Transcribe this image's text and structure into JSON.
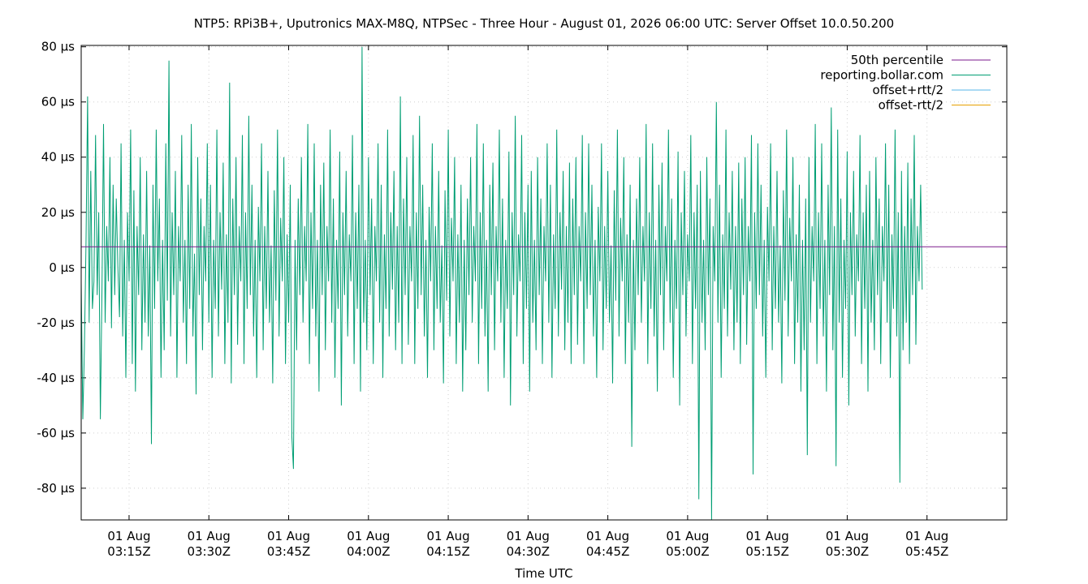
{
  "chart_data": {
    "type": "line",
    "title": "NTP5: RPi3B+, Uputronics MAX-M8Q, NTPSec - Three Hour - August 01, 2026 06:00 UTC: Server Offset 10.0.50.200",
    "xlabel": "Time UTC",
    "ylabel": "",
    "y_unit": "µs",
    "ylim": [
      -91.5,
      80.5
    ],
    "xlim": [
      "03:06",
      "06:00"
    ],
    "x_ticks": [
      {
        "line1": "01 Aug",
        "line2": "03:15Z",
        "minute": 195
      },
      {
        "line1": "01 Aug",
        "line2": "03:30Z",
        "minute": 210
      },
      {
        "line1": "01 Aug",
        "line2": "03:45Z",
        "minute": 225
      },
      {
        "line1": "01 Aug",
        "line2": "04:00Z",
        "minute": 240
      },
      {
        "line1": "01 Aug",
        "line2": "04:15Z",
        "minute": 255
      },
      {
        "line1": "01 Aug",
        "line2": "04:30Z",
        "minute": 270
      },
      {
        "line1": "01 Aug",
        "line2": "04:45Z",
        "minute": 285
      },
      {
        "line1": "01 Aug",
        "line2": "05:00Z",
        "minute": 300
      },
      {
        "line1": "01 Aug",
        "line2": "05:15Z",
        "minute": 315
      },
      {
        "line1": "01 Aug",
        "line2": "05:30Z",
        "minute": 330
      },
      {
        "line1": "01 Aug",
        "line2": "05:45Z",
        "minute": 345
      }
    ],
    "y_ticks": [
      {
        "value": 80,
        "label": "80 µs"
      },
      {
        "value": 60,
        "label": "60 µs"
      },
      {
        "value": 40,
        "label": "40 µs"
      },
      {
        "value": 20,
        "label": "20 µs"
      },
      {
        "value": 0,
        "label": "0 µs"
      },
      {
        "value": -20,
        "label": "-20 µs"
      },
      {
        "value": -40,
        "label": "-40 µs"
      },
      {
        "value": -60,
        "label": "-60 µs"
      },
      {
        "value": -80,
        "label": "-80 µs"
      }
    ],
    "grid": true,
    "legend_position": "top-right",
    "series": [
      {
        "name": "50th percentile",
        "color": "#7b1a8c",
        "constant": 7.5
      },
      {
        "name": "reporting.bollar.com",
        "color": "#009e73",
        "x_start_minute": 186,
        "x_step_minute": 0.3,
        "values": [
          -5,
          -55,
          -30,
          8,
          62,
          -20,
          35,
          -15,
          -5,
          48,
          -10,
          20,
          -55,
          -8,
          52,
          -20,
          15,
          -5,
          40,
          -22,
          30,
          -10,
          25,
          0,
          -18,
          45,
          -25,
          10,
          -40,
          20,
          -5,
          50,
          -35,
          28,
          -45,
          15,
          -10,
          40,
          -30,
          12,
          -20,
          35,
          -25,
          8,
          -64,
          30,
          -15,
          50,
          -5,
          25,
          -40,
          10,
          -30,
          45,
          -12,
          75,
          -25,
          20,
          -10,
          35,
          -40,
          15,
          -5,
          48,
          -20,
          10,
          -35,
          30,
          -15,
          52,
          -25,
          5,
          -46,
          40,
          -10,
          25,
          -30,
          15,
          -5,
          45,
          -20,
          30,
          -40,
          10,
          -15,
          50,
          -25,
          20,
          -8,
          38,
          -35,
          12,
          -20,
          67,
          -42,
          25,
          -10,
          40,
          -28,
          15,
          -5,
          48,
          -35,
          20,
          -15,
          55,
          -10,
          30,
          -25,
          10,
          -40,
          22,
          -5,
          45,
          -30,
          15,
          -15,
          35,
          -20,
          8,
          -42,
          28,
          -12,
          50,
          -25,
          18,
          -5,
          40,
          -35,
          12,
          -20,
          30,
          -61,
          -73,
          10,
          -30,
          25,
          -10,
          40,
          -20,
          15,
          -5,
          52,
          -35,
          20,
          -15,
          45,
          -25,
          10,
          -45,
          30,
          -10,
          38,
          -30,
          15,
          -5,
          50,
          -20,
          25,
          -40,
          10,
          -15,
          42,
          -50,
          20,
          -10,
          35,
          -25,
          12,
          -5,
          48,
          -35,
          20,
          -15,
          30,
          -45,
          80,
          -20,
          10,
          -30,
          40,
          -10,
          25,
          -35,
          15,
          -5,
          45,
          -20,
          30,
          -40,
          12,
          -15,
          50,
          -25,
          20,
          -8,
          35,
          -30,
          15,
          -20,
          62,
          -35,
          25,
          -10,
          40,
          -28,
          15,
          -5,
          48,
          -35,
          20,
          -15,
          55,
          -10,
          30,
          -25,
          10,
          -40,
          22,
          -5,
          45,
          -30,
          15,
          -15,
          35,
          -20,
          8,
          -42,
          28,
          -12,
          50,
          -25,
          18,
          -5,
          40,
          -35,
          12,
          -20,
          30,
          -45,
          10,
          -30,
          25,
          -10,
          40,
          -20,
          15,
          -5,
          52,
          -35,
          20,
          -15,
          45,
          -25,
          10,
          -45,
          30,
          -10,
          38,
          -30,
          15,
          -5,
          50,
          -20,
          25,
          -40,
          10,
          -15,
          42,
          -50,
          20,
          -10,
          55,
          -25,
          12,
          -5,
          48,
          -35,
          20,
          -15,
          30,
          -45,
          35,
          -20,
          10,
          -30,
          40,
          -10,
          25,
          -35,
          15,
          -5,
          45,
          -20,
          30,
          -40,
          12,
          -15,
          50,
          -25,
          20,
          -8,
          35,
          -30,
          15,
          -20,
          38,
          -35,
          25,
          -10,
          40,
          -28,
          15,
          -5,
          48,
          -35,
          20,
          -15,
          45,
          -10,
          30,
          -25,
          10,
          -40,
          22,
          -5,
          45,
          -30,
          15,
          -15,
          35,
          -20,
          8,
          -42,
          28,
          -12,
          50,
          -25,
          18,
          -5,
          40,
          -35,
          12,
          -20,
          30,
          -65,
          10,
          -30,
          25,
          -10,
          40,
          -20,
          15,
          -5,
          52,
          -35,
          20,
          -15,
          45,
          -25,
          10,
          -45,
          30,
          -10,
          38,
          -30,
          15,
          -5,
          50,
          -20,
          25,
          -40,
          10,
          -15,
          42,
          -50,
          20,
          -10,
          35,
          -25,
          12,
          -5,
          48,
          -35,
          20,
          -15,
          30,
          -84,
          35,
          -20,
          10,
          -30,
          40,
          -10,
          25,
          -92,
          15,
          -5,
          60,
          -20,
          30,
          -40,
          12,
          -15,
          50,
          -25,
          20,
          -8,
          35,
          -30,
          15,
          -20,
          38,
          -35,
          25,
          -10,
          40,
          -28,
          15,
          -5,
          48,
          -75,
          20,
          -15,
          45,
          -10,
          30,
          -25,
          10,
          -40,
          22,
          -5,
          45,
          -30,
          15,
          -15,
          35,
          -20,
          8,
          -42,
          28,
          -12,
          50,
          -25,
          18,
          -5,
          40,
          -35,
          12,
          -20,
          30,
          -45,
          10,
          -30,
          25,
          -68,
          40,
          -20,
          15,
          -5,
          52,
          -35,
          20,
          -15,
          45,
          -25,
          10,
          -45,
          30,
          -10,
          58,
          -30,
          15,
          -72,
          50,
          -20,
          25,
          -40,
          10,
          -15,
          42,
          -50,
          20,
          -10,
          35,
          -25,
          12,
          -5,
          48,
          -35,
          20,
          -15,
          30,
          -45,
          35,
          -20,
          10,
          -30,
          40,
          -10,
          25,
          -35,
          15,
          -5,
          45,
          -20,
          30,
          -40,
          12,
          -15,
          50,
          -25,
          20,
          -78,
          35,
          -30,
          15,
          -20,
          38,
          -35,
          25,
          -10,
          48,
          -28,
          15,
          -5,
          30,
          -8
        ]
      },
      {
        "name": "offset+rtt/2",
        "color": "#56b4e9"
      },
      {
        "name": "offset-rtt/2",
        "color": "#e69f00"
      }
    ]
  }
}
